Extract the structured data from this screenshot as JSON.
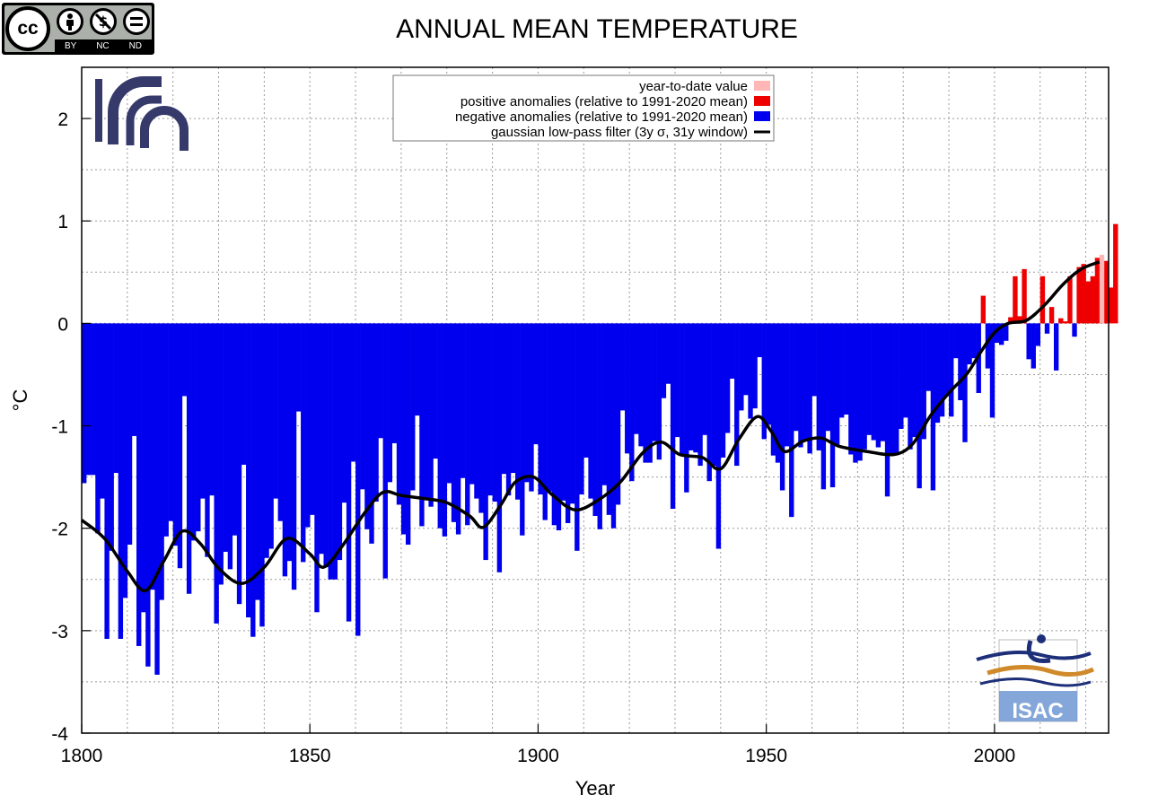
{
  "license": {
    "badge_text": "cc",
    "labels": [
      "BY",
      "NC",
      "ND"
    ],
    "icons": [
      "attribution-icon",
      "noncommercial-icon",
      "noderivatives-icon"
    ]
  },
  "logos": {
    "institute": "cnr-logo",
    "isac_text": "ISAC"
  },
  "colors": {
    "positive": "#ee0000",
    "negative": "#0000ee",
    "year_to_date": "#ffb6b6",
    "filter": "#000000",
    "isac_box": "#6f96d2"
  },
  "chart_data": {
    "type": "bar",
    "title": "ANNUAL MEAN TEMPERATURE",
    "xlabel": "Year",
    "ylabel": "°C",
    "xlim": [
      1800,
      2025
    ],
    "ylim": [
      -4,
      2.5
    ],
    "grid": true,
    "legend_position": "top-center",
    "xticks": [
      1800,
      1850,
      1900,
      1950,
      2000
    ],
    "yticks": [
      -4,
      -3,
      -2,
      -1,
      0,
      1,
      2
    ],
    "legend": [
      {
        "label": "year-to-date value",
        "kind": "box",
        "color": "#ffb6b6"
      },
      {
        "label": "positive anomalies (relative to 1991-2020 mean)",
        "kind": "box",
        "color": "#ee0000"
      },
      {
        "label": "negative anomalies (relative to 1991-2020 mean)",
        "kind": "box",
        "color": "#0000ee"
      },
      {
        "label": "gaussian low-pass filter (3y σ, 31y window)",
        "kind": "line",
        "color": "#000000"
      }
    ],
    "year_to_date": {
      "year": 2023,
      "value": 0.67
    },
    "series": [
      {
        "name": "annual anomaly",
        "start_year": 1800,
        "values": [
          -1.56,
          -1.48,
          -1.48,
          -2.05,
          -1.71,
          -3.08,
          -2.22,
          -1.46,
          -3.08,
          -2.68,
          -2.16,
          -1.1,
          -3.15,
          -2.82,
          -3.35,
          -2.6,
          -3.43,
          -2.7,
          -2.08,
          -1.93,
          -2.17,
          -2.39,
          -0.71,
          -2.64,
          -2.12,
          -2.03,
          -1.71,
          -2.28,
          -1.68,
          -2.93,
          -2.55,
          -2.23,
          -2.4,
          -2.07,
          -2.74,
          -1.38,
          -2.87,
          -3.06,
          -2.7,
          -2.96,
          -2.29,
          -2.2,
          -1.71,
          -1.93,
          -2.47,
          -2.32,
          -2.6,
          -0.86,
          -2.33,
          -1.99,
          -1.87,
          -2.82,
          -2.25,
          -2.38,
          -2.5,
          -2.5,
          -2.31,
          -1.75,
          -2.91,
          -1.35,
          -3.05,
          -1.62,
          -2.01,
          -2.15,
          -1.74,
          -1.12,
          -2.49,
          -1.55,
          -1.17,
          -1.77,
          -2.06,
          -2.16,
          -1.63,
          -0.9,
          -1.98,
          -1.72,
          -1.79,
          -1.32,
          -2.0,
          -2.08,
          -1.56,
          -1.94,
          -2.06,
          -1.51,
          -1.97,
          -1.57,
          -1.71,
          -1.85,
          -2.31,
          -1.68,
          -1.74,
          -2.43,
          -1.47,
          -1.68,
          -1.46,
          -1.72,
          -2.07,
          -1.55,
          -1.64,
          -1.18,
          -1.67,
          -1.92,
          -1.64,
          -1.97,
          -2.02,
          -1.73,
          -1.95,
          -1.76,
          -2.22,
          -1.67,
          -1.31,
          -1.71,
          -1.88,
          -2.01,
          -1.58,
          -1.87,
          -2.0,
          -1.77,
          -0.85,
          -1.27,
          -1.54,
          -1.08,
          -1.2,
          -1.36,
          -1.36,
          -1.15,
          -1.33,
          -0.73,
          -0.59,
          -1.81,
          -1.11,
          -1.29,
          -1.65,
          -1.24,
          -1.26,
          -1.39,
          -1.09,
          -1.54,
          -1.39,
          -2.2,
          -1.31,
          -1.07,
          -0.54,
          -1.39,
          -0.85,
          -0.7,
          -0.93,
          -0.83,
          -0.33,
          -1.13,
          -0.99,
          -1.29,
          -1.36,
          -1.63,
          -1.2,
          -1.89,
          -1.05,
          -1.21,
          -1.15,
          -1.27,
          -0.71,
          -1.24,
          -1.62,
          -1.05,
          -1.6,
          -1.19,
          -0.92,
          -0.89,
          -1.28,
          -1.36,
          -1.34,
          -1.23,
          -1.09,
          -1.14,
          -1.21,
          -1.15,
          -1.69,
          -1.29,
          -1.27,
          -1.03,
          -0.92,
          -1.23,
          -1.11,
          -1.61,
          -1.13,
          -0.66,
          -1.63,
          -0.97,
          -0.91,
          -0.71,
          -0.91,
          -0.34,
          -0.75,
          -1.16,
          -0.4,
          -0.34,
          -0.68,
          0.27,
          -0.44,
          -0.92,
          -0.19,
          -0.21,
          -0.17,
          0.06,
          0.46,
          0.07,
          0.53,
          -0.35,
          -0.44,
          -0.22,
          0.46,
          -0.1,
          0.16,
          -0.46,
          0.05,
          0.02,
          0.46,
          -0.13,
          0.55,
          0.58,
          0.41,
          0.46,
          0.64,
          0.53,
          0.61,
          0.35,
          0.97
        ]
      },
      {
        "name": "gaussian low-pass filter (3y σ, 31y window)",
        "points": [
          [
            1800,
            -1.92
          ],
          [
            1805,
            -2.1
          ],
          [
            1810,
            -2.42
          ],
          [
            1814,
            -2.61
          ],
          [
            1818,
            -2.32
          ],
          [
            1822,
            -2.03
          ],
          [
            1826,
            -2.15
          ],
          [
            1830,
            -2.39
          ],
          [
            1835,
            -2.54
          ],
          [
            1840,
            -2.38
          ],
          [
            1845,
            -2.1
          ],
          [
            1850,
            -2.25
          ],
          [
            1853,
            -2.38
          ],
          [
            1857,
            -2.18
          ],
          [
            1862,
            -1.85
          ],
          [
            1866,
            -1.65
          ],
          [
            1870,
            -1.68
          ],
          [
            1875,
            -1.71
          ],
          [
            1880,
            -1.75
          ],
          [
            1885,
            -1.88
          ],
          [
            1888,
            -1.99
          ],
          [
            1892,
            -1.76
          ],
          [
            1895,
            -1.55
          ],
          [
            1899,
            -1.5
          ],
          [
            1903,
            -1.67
          ],
          [
            1908,
            -1.82
          ],
          [
            1913,
            -1.73
          ],
          [
            1918,
            -1.55
          ],
          [
            1923,
            -1.26
          ],
          [
            1927,
            -1.16
          ],
          [
            1931,
            -1.28
          ],
          [
            1936,
            -1.31
          ],
          [
            1940,
            -1.42
          ],
          [
            1944,
            -1.13
          ],
          [
            1948,
            -0.91
          ],
          [
            1951,
            -1.05
          ],
          [
            1954,
            -1.25
          ],
          [
            1958,
            -1.15
          ],
          [
            1962,
            -1.12
          ],
          [
            1966,
            -1.2
          ],
          [
            1972,
            -1.25
          ],
          [
            1978,
            -1.28
          ],
          [
            1982,
            -1.18
          ],
          [
            1986,
            -0.9
          ],
          [
            1990,
            -0.68
          ],
          [
            1994,
            -0.49
          ],
          [
            1997,
            -0.28
          ],
          [
            2000,
            -0.09
          ],
          [
            2003,
            0.0
          ],
          [
            2007,
            0.03
          ],
          [
            2011,
            0.18
          ],
          [
            2015,
            0.38
          ],
          [
            2019,
            0.53
          ],
          [
            2023,
            0.6
          ]
        ]
      }
    ]
  }
}
